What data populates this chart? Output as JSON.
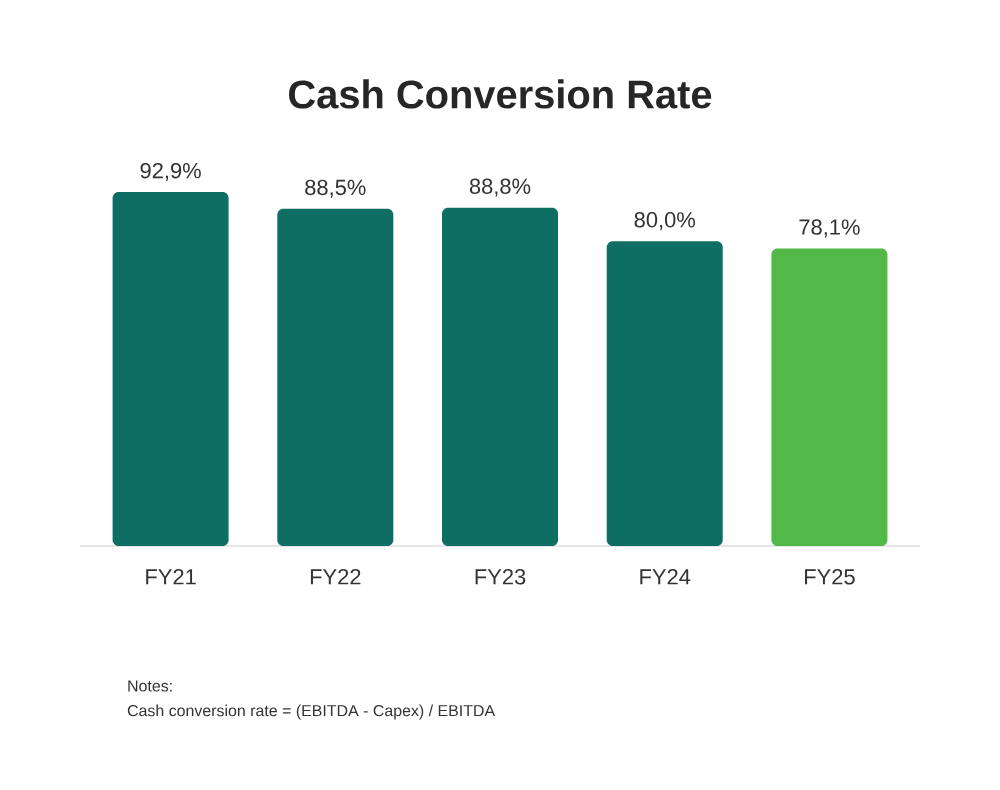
{
  "chart_data": {
    "type": "bar",
    "title": "Cash Conversion Rate",
    "categories": [
      "FY21",
      "FY22",
      "FY23",
      "FY24",
      "FY25"
    ],
    "values": [
      92.9,
      88.5,
      88.8,
      80.0,
      78.1
    ],
    "value_labels": [
      "92,9%",
      "88,5%",
      "88,8%",
      "80,0%",
      "78,1%"
    ],
    "colors": [
      "#0e6e64",
      "#0e6e64",
      "#0e6e64",
      "#0e6e64",
      "#52b848"
    ],
    "annotations": [
      "Notes:",
      "Cash conversion rate = (EBITDA - Capex) / EBITDA"
    ]
  }
}
